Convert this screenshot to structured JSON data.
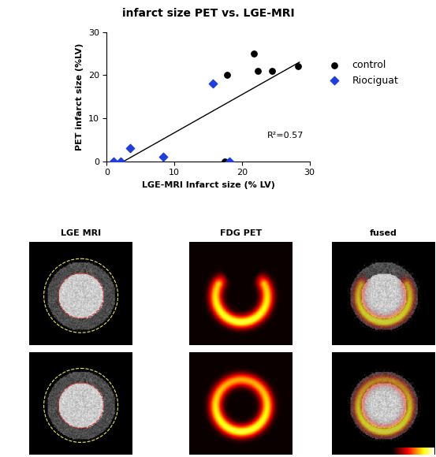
{
  "chart_data": {
    "type": "scatter",
    "title": "infarct size PET vs. LGE-MRI",
    "x_label": "LGE-MRI Infarct size (% LV)",
    "y_label": "PET infarct size (%LV)",
    "xlim": [
      0,
      30
    ],
    "xticks": [
      0,
      10,
      20,
      30
    ],
    "ylim": [
      0,
      30
    ],
    "yticks": [
      0,
      10,
      20,
      30
    ],
    "legend": "right",
    "series": [
      {
        "name": "control",
        "color": "#000000",
        "marker": "circle",
        "x": [
          17.8,
          21.8,
          22.3,
          24.5,
          28.3,
          17.5
        ],
        "values": [
          20,
          25,
          21,
          21,
          22,
          0
        ]
      },
      {
        "name": "Riociguat",
        "color": "#1f3de0",
        "marker": "diamond",
        "x": [
          1.0,
          2.0,
          3.5,
          8.3,
          15.7,
          18.2
        ],
        "values": [
          0,
          0,
          3,
          1,
          18,
          0
        ]
      }
    ],
    "fit_line": {
      "x": [
        2.5,
        28.5
      ],
      "values": [
        0,
        23
      ],
      "color": "#000000"
    },
    "annotations": [
      "R²=0.57"
    ]
  },
  "image_panels": {
    "titles": [
      "LGE MRI",
      "FDG PET",
      "fused"
    ],
    "rows": 2
  }
}
